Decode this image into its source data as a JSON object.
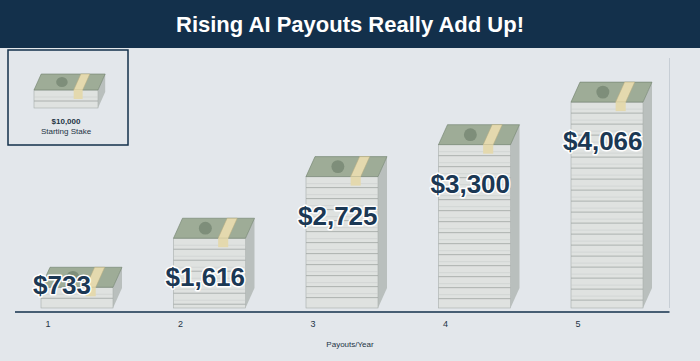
{
  "chart_data": {
    "type": "bar",
    "title": "Rising AI Payouts Really Add Up!",
    "categories": [
      "1",
      "2",
      "3",
      "4",
      "5"
    ],
    "values": [
      733,
      1616,
      2725,
      3300,
      4066
    ],
    "value_labels": [
      "$733",
      "$1,616",
      "$2,725",
      "$3,300",
      "$4,066"
    ],
    "data_labels": true,
    "x_label": "Payouts/Year",
    "ylim": [
      0,
      4500
    ],
    "tick_labels": "x",
    "annotation": {
      "value": 10000,
      "label": "$10,000",
      "text": "Starting Stake"
    }
  }
}
